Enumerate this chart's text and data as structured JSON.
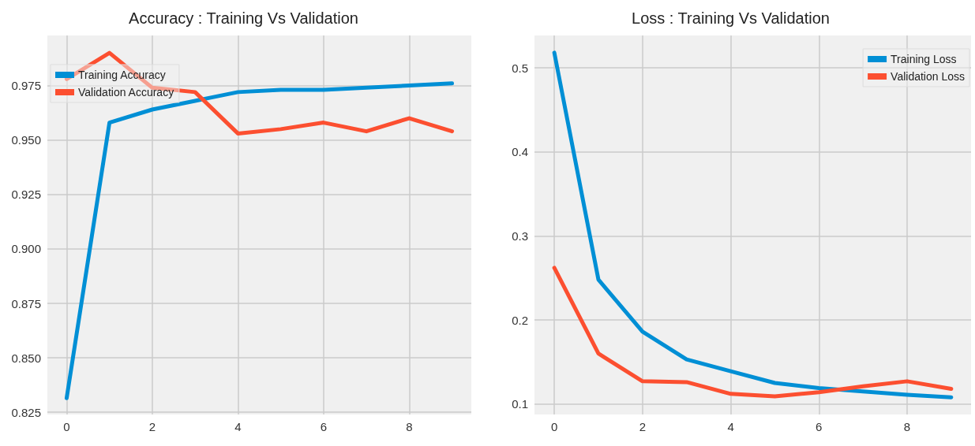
{
  "chart_data": [
    {
      "type": "line",
      "title": "Accuracy : Training Vs Validation",
      "x": [
        0,
        1,
        2,
        3,
        4,
        5,
        6,
        7,
        8,
        9
      ],
      "series": [
        {
          "name": "Training Accuracy",
          "color": "#008fd5",
          "values": [
            0.8315,
            0.958,
            0.964,
            0.968,
            0.972,
            0.973,
            0.973,
            0.974,
            0.975,
            0.976
          ]
        },
        {
          "name": "Validation Accuracy",
          "color": "#fc4f30",
          "values": [
            0.978,
            0.99,
            0.974,
            0.972,
            0.953,
            0.955,
            0.958,
            0.954,
            0.96,
            0.954
          ]
        }
      ],
      "xlim": [
        -0.45,
        9.45
      ],
      "xticks": [
        0,
        2,
        4,
        6,
        8
      ],
      "ylim": [
        0.824,
        0.998
      ],
      "yticks": [
        {
          "value": 0.825,
          "label": "0.825"
        },
        {
          "value": 0.85,
          "label": "0.850"
        },
        {
          "value": 0.875,
          "label": "0.875"
        },
        {
          "value": 0.9,
          "label": "0.900"
        },
        {
          "value": 0.925,
          "label": "0.925"
        },
        {
          "value": 0.95,
          "label": "0.950"
        },
        {
          "value": 0.975,
          "label": "0.975"
        }
      ],
      "grid": true,
      "legend": "top left",
      "marker": "none",
      "line_style": "solid"
    },
    {
      "type": "line",
      "title": "Loss : Training Vs Validation",
      "x": [
        0,
        1,
        2,
        3,
        4,
        5,
        6,
        7,
        8,
        9
      ],
      "series": [
        {
          "name": "Training Loss",
          "color": "#008fd5",
          "values": [
            0.518,
            0.248,
            0.186,
            0.153,
            0.139,
            0.125,
            0.119,
            0.115,
            0.111,
            0.108
          ]
        },
        {
          "name": "Validation Loss",
          "color": "#fc4f30",
          "values": [
            0.262,
            0.16,
            0.127,
            0.126,
            0.112,
            0.109,
            0.114,
            0.121,
            0.127,
            0.118
          ]
        }
      ],
      "xlim": [
        -0.45,
        9.45
      ],
      "xticks": [
        0,
        2,
        4,
        6,
        8
      ],
      "ylim": [
        0.0875,
        0.5385
      ],
      "yticks": [
        0.1,
        0.2,
        0.3,
        0.4,
        0.5
      ],
      "grid": true,
      "legend": "top right",
      "marker": "none",
      "line_style": "solid"
    }
  ]
}
